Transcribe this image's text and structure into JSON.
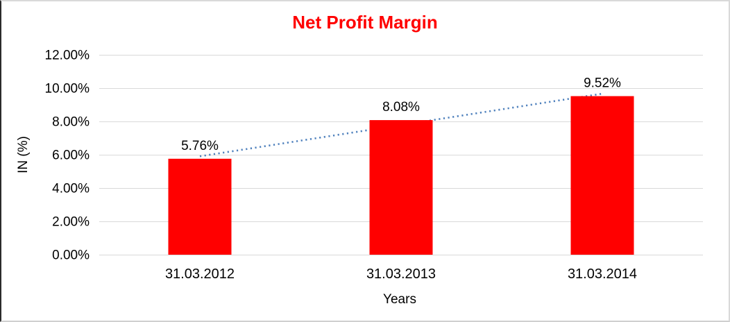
{
  "chart_data": {
    "type": "bar",
    "title": "Net Profit Margin",
    "xlabel": "Years",
    "ylabel": "IN (%)",
    "categories": [
      "31.03.2012",
      "31.03.2013",
      "31.03.2014"
    ],
    "values": [
      5.76,
      8.08,
      9.52
    ],
    "data_labels": [
      "5.76%",
      "8.08%",
      "9.52%"
    ],
    "yticks": [
      0,
      2,
      4,
      6,
      8,
      10,
      12
    ],
    "ytick_labels": [
      "0.00%",
      "2.00%",
      "4.00%",
      "6.00%",
      "8.00%",
      "10.00%",
      "12.00%"
    ],
    "ylim": [
      0,
      12
    ],
    "grid": true,
    "legend": "none",
    "bar_color": "#ff0000",
    "title_color": "#ff0000",
    "gridline_color": "#d9d9d9",
    "text_color": "#000000",
    "trendline": {
      "type": "linear",
      "style": "dotted",
      "color": "#4f81bd"
    }
  }
}
